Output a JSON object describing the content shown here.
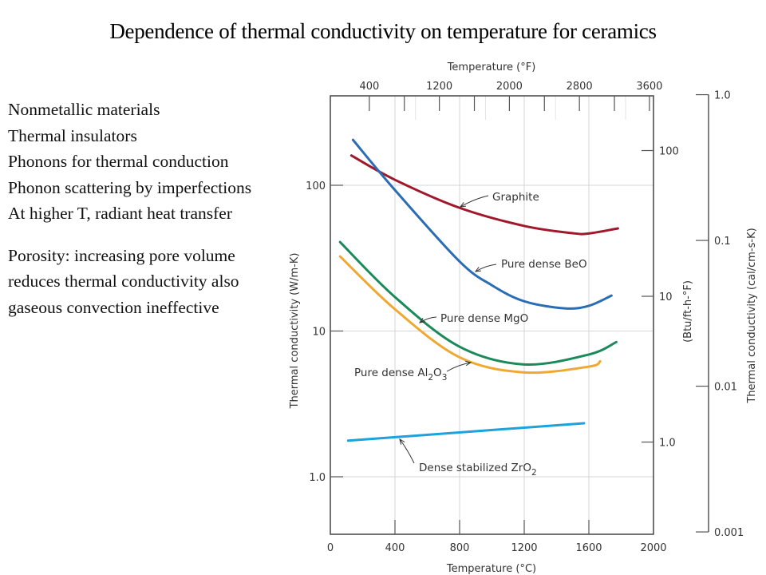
{
  "slide": {
    "title": "Dependence of thermal conductivity on temperature for ceramics",
    "bullets": [
      "Nonmetallic materials",
      "Thermal insulators",
      "Phonons for thermal conduction",
      "Phonon scattering by imperfections",
      "At higher T, radiant heat transfer"
    ],
    "notes": [
      "Porosity: increasing pore volume",
      "reduces thermal conductivity also",
      "gaseous convection ineffective"
    ]
  },
  "chart_data": {
    "type": "line",
    "title": "",
    "xlabel": "Temperature (°C)",
    "xlabel_top": "Temperature (°F)",
    "ylabel": "Thermal conductivity (W/m-K)",
    "ylabel_right1": "(Btu/ft-h-°F)",
    "ylabel_right2": "Thermal conductivity (cal/cm-s-K)",
    "x_scale": "linear",
    "y_scale": "log",
    "xlim": [
      0,
      2000
    ],
    "ylim": [
      0.4,
      411
    ],
    "x_ticks": [
      0,
      400,
      800,
      1200,
      1600,
      2000
    ],
    "x_tick_labels": [
      "0",
      "400",
      "800",
      "1200",
      "1600",
      "2000"
    ],
    "x_top_ticks_F": [
      400,
      800,
      1200,
      1600,
      2000,
      2400,
      2800,
      3200,
      3600
    ],
    "x_top_tick_labels": [
      "400",
      "1200",
      "2000",
      "2800",
      "3600"
    ],
    "y_ticks": [
      1,
      10,
      100
    ],
    "y_tick_labels": [
      "1.0",
      "10",
      "100"
    ],
    "y_right1_ticks": [
      1,
      10,
      100
    ],
    "y_right1_tick_labels": [
      "1.0",
      "10",
      "100"
    ],
    "y_right2_ticks": [
      0.001,
      0.01,
      0.1,
      1.0
    ],
    "y_right2_tick_labels": [
      "0.001",
      "0.01",
      "0.1",
      "1.0"
    ],
    "grid": true,
    "legend": "none (inline labels)",
    "series": [
      {
        "name": "Graphite",
        "color": "#a0182c",
        "x": [
          130,
          400,
          800,
          1200,
          1500,
          1600,
          1780
        ],
        "y": [
          160,
          109,
          70,
          52.6,
          46.9,
          46.7,
          50.6
        ]
      },
      {
        "name": "Pure dense BeO",
        "color": "#2a6db5",
        "x": [
          140,
          400,
          800,
          1000,
          1200,
          1450,
          1600,
          1740
        ],
        "y": [
          205,
          92.7,
          30,
          20.6,
          16,
          14.3,
          14.9,
          17.5
        ]
      },
      {
        "name": "Pure dense MgO",
        "color": "#1b8a5a",
        "x": [
          60,
          400,
          800,
          1200,
          1600,
          1770
        ],
        "y": [
          40.8,
          17.1,
          7.8,
          5.9,
          6.9,
          8.4
        ]
      },
      {
        "name": "Pure dense Al2O3",
        "color": "#f0a830",
        "x": [
          60,
          400,
          800,
          1200,
          1600,
          1670
        ],
        "y": [
          32.5,
          14.1,
          6.6,
          5.2,
          5.7,
          6.2
        ]
      },
      {
        "name": "Dense stabilized ZrO2",
        "color": "#1aa3dc",
        "x": [
          110,
          1570
        ],
        "y": [
          1.77,
          2.33
        ]
      }
    ],
    "annotations": [
      {
        "series": "Graphite",
        "text": "Graphite"
      },
      {
        "series": "Pure dense BeO",
        "text": "Pure dense BeO"
      },
      {
        "series": "Pure dense MgO",
        "text": "Pure dense MgO"
      },
      {
        "series": "Pure dense Al2O3",
        "text": "Pure dense Al",
        "sub1": "2",
        "mid": "O",
        "sub2": "3"
      },
      {
        "series": "Dense stabilized ZrO2",
        "text": "Dense stabilized ZrO",
        "sub1": "2"
      }
    ]
  }
}
